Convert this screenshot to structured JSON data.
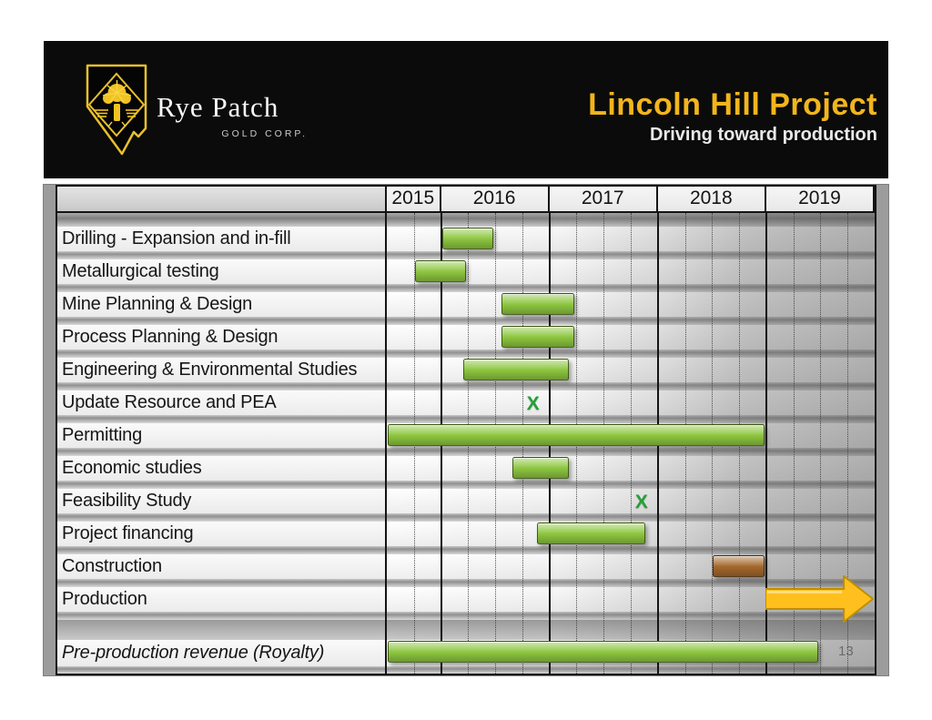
{
  "page_number": "13",
  "header": {
    "logo_name": "Rye Patch",
    "logo_subtitle": "GOLD CORP.",
    "title": "Lincoln Hill Project",
    "subtitle": "Driving toward production",
    "title_color": "#f2b51c"
  },
  "chart_data": {
    "type": "gantt",
    "title": "Lincoln Hill Project — Driving toward production",
    "timeline": {
      "start": 2015.5,
      "end": 2020.0,
      "unit": "year",
      "gridline_every_quarters": 1
    },
    "years": [
      {
        "label": "2015",
        "quarters": 2
      },
      {
        "label": "2016",
        "quarters": 4
      },
      {
        "label": "2017",
        "quarters": 4
      },
      {
        "label": "2018",
        "quarters": 4
      },
      {
        "label": "2019",
        "quarters": 4
      }
    ],
    "milestone_symbol": "X",
    "colors": {
      "bar": "#8dc63f",
      "bar_alt": "#a4682c",
      "arrow": "#ffc01e",
      "arrow_border": "#bf8e00",
      "milestone": "#23a038"
    },
    "tasks": [
      {
        "label": "Drilling - Expansion and in-fill",
        "kind": "bar",
        "start": 2016.0,
        "end": 2016.5
      },
      {
        "label": "Metallurgical testing",
        "kind": "bar",
        "start": 2015.75,
        "end": 2016.25
      },
      {
        "label": "Mine Planning & Design",
        "kind": "bar",
        "start": 2016.55,
        "end": 2017.25
      },
      {
        "label": "Process Planning & Design",
        "kind": "bar",
        "start": 2016.55,
        "end": 2017.25
      },
      {
        "label": "Engineering & Environmental Studies",
        "kind": "bar",
        "start": 2016.2,
        "end": 2017.2
      },
      {
        "label": "Update Resource and PEA",
        "kind": "milestone",
        "at": 2016.85
      },
      {
        "label": "Permitting",
        "kind": "bar",
        "start": 2015.5,
        "end": 2019.0
      },
      {
        "label": "Economic studies",
        "kind": "bar",
        "start": 2016.65,
        "end": 2017.2
      },
      {
        "label": "Feasibility Study",
        "kind": "milestone",
        "at": 2017.85
      },
      {
        "label": "Project financing",
        "kind": "bar",
        "start": 2016.88,
        "end": 2017.9
      },
      {
        "label": "Construction",
        "kind": "bar",
        "color": "bar_alt",
        "start": 2018.5,
        "end": 2019.0
      },
      {
        "label": "Production",
        "kind": "arrow",
        "start": 2019.0,
        "end": 2020.0
      },
      {
        "label": "",
        "kind": "spacer"
      },
      {
        "label": "Pre-production revenue (Royalty)",
        "kind": "bar",
        "italic": true,
        "start": 2015.5,
        "end": 2019.5
      }
    ]
  }
}
